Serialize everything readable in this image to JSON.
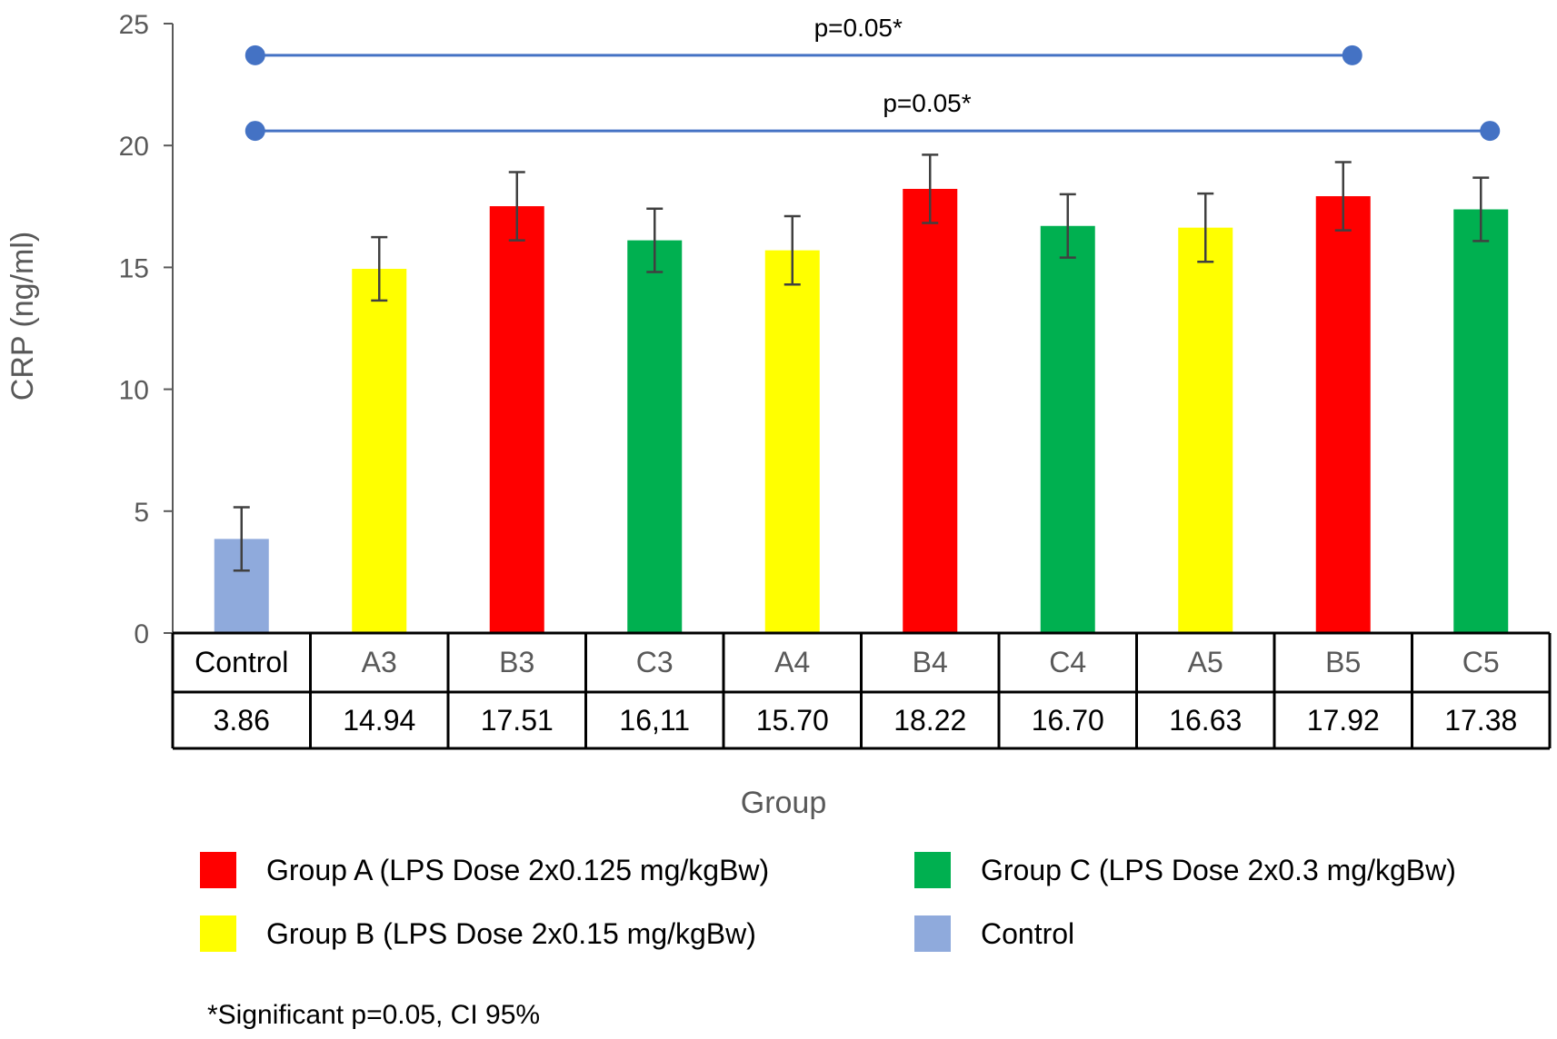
{
  "chart_data": {
    "type": "bar",
    "xlabel": "Group",
    "ylabel": "CRP (ng/ml)",
    "ylim": [
      0,
      25
    ],
    "yticks": [
      0,
      5,
      10,
      15,
      20,
      25
    ],
    "categories": [
      "Control",
      "A3",
      "B3",
      "C3",
      "A4",
      "B4",
      "C4",
      "A5",
      "B5",
      "C5"
    ],
    "values": [
      3.86,
      14.94,
      17.51,
      16.11,
      15.7,
      18.22,
      16.7,
      16.63,
      17.92,
      17.38
    ],
    "value_labels": [
      "3.86",
      "14.94",
      "17.51",
      "16,11",
      "15.70",
      "18.22",
      "16.70",
      "16.63",
      "17.92",
      "17.38"
    ],
    "error": [
      1.3,
      1.3,
      1.4,
      1.3,
      1.4,
      1.4,
      1.3,
      1.4,
      1.4,
      1.3
    ],
    "bar_colors": [
      "#8faadc",
      "#ffff00",
      "#ff0000",
      "#00b050",
      "#ffff00",
      "#ff0000",
      "#00b050",
      "#ffff00",
      "#ff0000",
      "#00b050"
    ],
    "significance": [
      {
        "label": "p=0.05*",
        "from": "Control",
        "to": "B5",
        "y": 23.7
      },
      {
        "label": "p=0.05*",
        "from": "Control",
        "to": "C5",
        "y": 20.6
      }
    ],
    "significance_color": "#4472c4",
    "legend": [
      {
        "label": "Group A (LPS Dose 2x0.125 mg/kgBw)",
        "color": "#ff0000"
      },
      {
        "label": "Group C (LPS Dose 2x0.3 mg/kgBw)",
        "color": "#00b050"
      },
      {
        "label": "Group  B (LPS Dose 2x0.15 mg/kgBw)",
        "color": "#ffff00"
      },
      {
        "label": "Control",
        "color": "#8faadc"
      }
    ],
    "note": "*Significant p=0.05, CI 95%",
    "grid": false
  }
}
